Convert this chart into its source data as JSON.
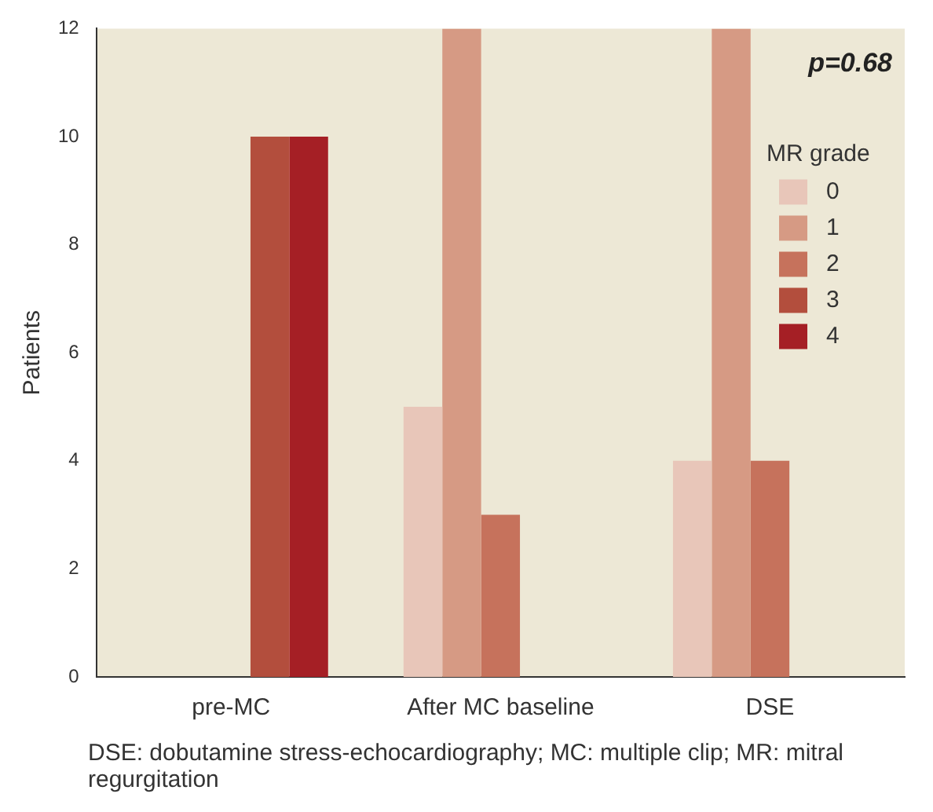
{
  "chart_data": {
    "type": "bar",
    "ylabel": "Patients",
    "legend_title": "MR grade",
    "categories": [
      "pre-MC",
      "After MC baseline",
      "DSE"
    ],
    "series": [
      {
        "name": "0",
        "color": "#e8c6b9",
        "values": [
          0,
          5,
          4
        ]
      },
      {
        "name": "1",
        "color": "#d69a84",
        "values": [
          0,
          12,
          12
        ]
      },
      {
        "name": "2",
        "color": "#c6725c",
        "values": [
          0,
          3,
          4
        ]
      },
      {
        "name": "3",
        "color": "#b34e3d",
        "values": [
          10,
          0,
          0
        ]
      },
      {
        "name": "4",
        "color": "#a51f25",
        "values": [
          10,
          0,
          0
        ]
      }
    ],
    "ylim": [
      0,
      12
    ],
    "yticks": [
      0,
      2,
      4,
      6,
      8,
      10,
      12
    ],
    "grid": false,
    "legend": "top right",
    "annotations": [
      "p=0.68",
      "DSE: dobutamine stress-echocardiography; MC: multiple clip; MR: mitral regurgitation"
    ]
  }
}
